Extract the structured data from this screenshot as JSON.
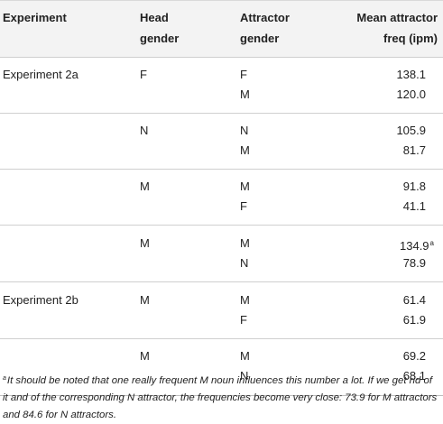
{
  "table": {
    "headers": {
      "experiment": "Experiment",
      "head_gender": [
        "Head",
        "gender"
      ],
      "attractor_gender": [
        "Attractor",
        "gender"
      ],
      "mean_freq": [
        "Mean attractor",
        "freq (ipm)"
      ]
    },
    "groups": [
      {
        "experiment": "Experiment 2a",
        "head": "F",
        "rows": [
          {
            "attractor": "F",
            "freq": "138.1"
          },
          {
            "attractor": "M",
            "freq": "120.0"
          }
        ]
      },
      {
        "experiment": "",
        "head": "N",
        "rows": [
          {
            "attractor": "N",
            "freq": "105.9"
          },
          {
            "attractor": "M",
            "freq": "81.7"
          }
        ]
      },
      {
        "experiment": "",
        "head": "M",
        "rows": [
          {
            "attractor": "M",
            "freq": "91.8"
          },
          {
            "attractor": "F",
            "freq": "41.1"
          }
        ]
      },
      {
        "experiment": "",
        "head": "M",
        "rows": [
          {
            "attractor": "M",
            "freq": "134.9",
            "sup": "a"
          },
          {
            "attractor": "N",
            "freq": "78.9"
          }
        ]
      },
      {
        "experiment": "Experiment 2b",
        "head": "M",
        "rows": [
          {
            "attractor": "M",
            "freq": "61.4"
          },
          {
            "attractor": "F",
            "freq": "61.9"
          }
        ]
      },
      {
        "experiment": "",
        "head": "M",
        "rows": [
          {
            "attractor": "M",
            "freq": "69.2"
          },
          {
            "attractor": "N",
            "freq": "68.1"
          }
        ]
      }
    ]
  },
  "footnote": {
    "marker": "a",
    "text": "It should be noted that one really frequent M noun influences this number a lot. If we get rid of it and of the corresponding N attractor, the frequencies become very close: 73.9 for M attractors and 84.6 for N attractors."
  }
}
